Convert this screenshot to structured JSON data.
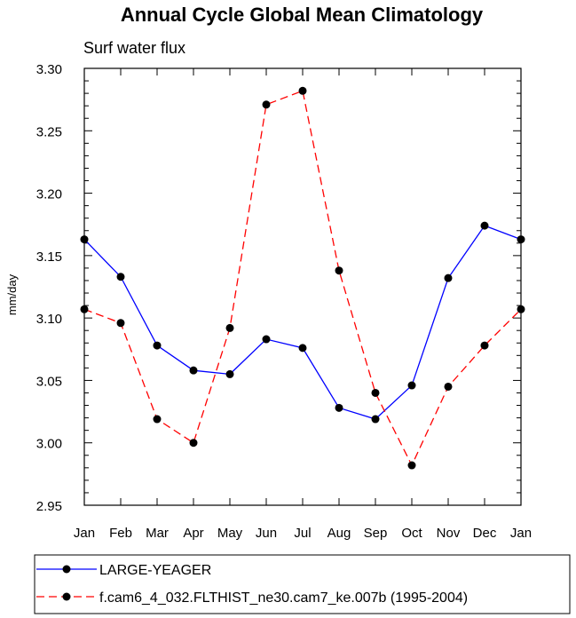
{
  "chart_data": {
    "type": "line",
    "title": "Annual Cycle Global Mean Climatology",
    "subtitle": "Surf water flux",
    "xlabel": "",
    "ylabel": "mm/day",
    "categories": [
      "Jan",
      "Feb",
      "Mar",
      "Apr",
      "May",
      "Jun",
      "Jul",
      "Aug",
      "Sep",
      "Oct",
      "Nov",
      "Dec",
      "Jan"
    ],
    "ylim": [
      2.95,
      3.3
    ],
    "yticks": [
      "2.95",
      "3.00",
      "3.05",
      "3.10",
      "3.15",
      "3.20",
      "3.25",
      "3.30"
    ],
    "grid": false,
    "legend_position": "bottom",
    "series": [
      {
        "name": "LARGE-YEAGER",
        "color": "#0000ff",
        "dash": "solid",
        "values": [
          3.163,
          3.133,
          3.078,
          3.058,
          3.055,
          3.083,
          3.076,
          3.028,
          3.019,
          3.046,
          3.132,
          3.174,
          3.163
        ]
      },
      {
        "name": "f.cam6_4_032.FLTHIST_ne30.cam7_ke.007b (1995-2004)",
        "color": "#ff0000",
        "dash": "dashed",
        "values": [
          3.107,
          3.096,
          3.019,
          3.0,
          3.092,
          3.271,
          3.282,
          3.138,
          3.04,
          2.982,
          3.045,
          3.078,
          3.107
        ]
      }
    ]
  }
}
